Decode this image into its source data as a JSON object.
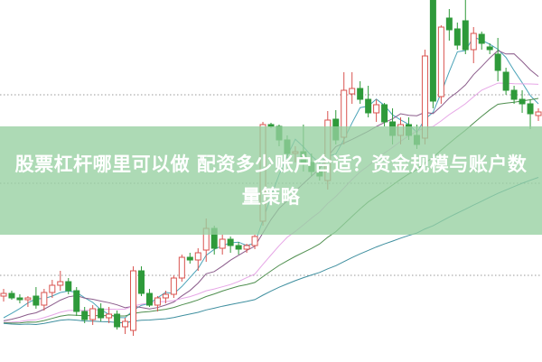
{
  "banner": {
    "title": "股票杠杆哪里可以做 配资多少账户合适？资金规模与账户数量策略"
  },
  "colors": {
    "up": "#d9534f",
    "down": "#2e9a3a",
    "banner": "#96d0a0",
    "grid": "#999999",
    "ma5": "#4aa3b8",
    "ma10": "#8b5c8b",
    "ma20": "#e6a6e6",
    "ma30": "#4f8f4f",
    "ma60": "#3f8f9f"
  },
  "chart_data": {
    "type": "candlestick",
    "title": "",
    "xlabel": "",
    "ylabel": "",
    "axes_labels_visible": false,
    "grid": "horizontal dotted",
    "ylim": [
      0,
      400
    ],
    "ohlc_format": [
      "open",
      "high",
      "low",
      "close"
    ],
    "candles": [
      [
        72,
        80,
        66,
        75
      ],
      [
        75,
        78,
        68,
        70
      ],
      [
        70,
        74,
        64,
        68
      ],
      [
        68,
        72,
        60,
        70
      ],
      [
        72,
        82,
        58,
        62
      ],
      [
        62,
        80,
        56,
        76
      ],
      [
        76,
        90,
        70,
        84
      ],
      [
        84,
        100,
        78,
        88
      ],
      [
        88,
        92,
        74,
        78
      ],
      [
        78,
        82,
        50,
        55
      ],
      [
        55,
        60,
        42,
        46
      ],
      [
        46,
        62,
        40,
        58
      ],
      [
        58,
        64,
        44,
        48
      ],
      [
        48,
        60,
        42,
        52
      ],
      [
        52,
        56,
        35,
        38
      ],
      [
        38,
        48,
        30,
        44
      ],
      [
        34,
        105,
        28,
        100
      ],
      [
        100,
        105,
        72,
        75
      ],
      [
        75,
        80,
        60,
        62
      ],
      [
        62,
        72,
        55,
        70
      ],
      [
        70,
        78,
        64,
        74
      ],
      [
        74,
        95,
        70,
        92
      ],
      [
        92,
        118,
        88,
        115
      ],
      [
        115,
        120,
        108,
        112
      ],
      [
        112,
        125,
        100,
        120
      ],
      [
        123,
        158,
        110,
        147
      ],
      [
        147,
        150,
        118,
        125
      ],
      [
        125,
        140,
        118,
        135
      ],
      [
        135,
        138,
        120,
        128
      ],
      [
        128,
        132,
        118,
        124
      ],
      [
        124,
        130,
        120,
        128
      ],
      [
        128,
        140,
        124,
        138
      ],
      [
        155,
        265,
        150,
        262
      ],
      [
        262,
        264,
        258,
        260
      ],
      [
        260,
        262,
        238,
        245
      ],
      [
        245,
        250,
        225,
        230
      ],
      [
        230,
        238,
        220,
        232
      ],
      [
        232,
        262,
        210,
        220
      ],
      [
        220,
        230,
        205,
        210
      ],
      [
        210,
        216,
        200,
        205
      ],
      [
        200,
        277,
        190,
        267
      ],
      [
        268,
        278,
        240,
        245
      ],
      [
        248,
        320,
        240,
        300
      ],
      [
        296,
        320,
        285,
        302
      ],
      [
        302,
        310,
        285,
        290
      ],
      [
        290,
        305,
        270,
        275
      ],
      [
        275,
        290,
        265,
        284
      ],
      [
        284,
        286,
        260,
        265
      ],
      [
        265,
        280,
        240,
        250
      ],
      [
        250,
        270,
        240,
        262
      ],
      [
        262,
        270,
        245,
        250
      ],
      [
        250,
        262,
        235,
        240
      ],
      [
        247,
        345,
        240,
        338
      ],
      [
        400,
        400,
        280,
        288
      ],
      [
        293,
        372,
        285,
        370
      ],
      [
        380,
        390,
        355,
        367
      ],
      [
        368,
        375,
        345,
        350
      ],
      [
        377,
        400,
        340,
        345
      ],
      [
        345,
        370,
        330,
        363
      ],
      [
        362,
        365,
        345,
        352
      ],
      [
        348,
        352,
        340,
        345
      ],
      [
        340,
        358,
        310,
        322
      ],
      [
        320,
        325,
        295,
        300
      ],
      [
        300,
        305,
        285,
        290
      ],
      [
        290,
        300,
        275,
        285
      ],
      [
        285,
        290,
        257,
        274
      ],
      [
        272,
        280,
        266,
        276
      ]
    ],
    "moving_averages": [
      5,
      10,
      20,
      30,
      60
    ]
  }
}
